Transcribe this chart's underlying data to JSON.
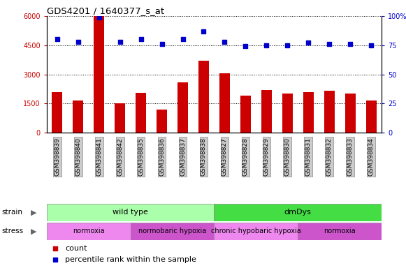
{
  "title": "GDS4201 / 1640377_s_at",
  "samples": [
    "GSM398839",
    "GSM398840",
    "GSM398841",
    "GSM398842",
    "GSM398835",
    "GSM398836",
    "GSM398837",
    "GSM398838",
    "GSM398827",
    "GSM398828",
    "GSM398829",
    "GSM398830",
    "GSM398831",
    "GSM398832",
    "GSM398833",
    "GSM398834"
  ],
  "counts": [
    2100,
    1650,
    6000,
    1500,
    2050,
    1200,
    2600,
    3700,
    3050,
    1900,
    2200,
    2000,
    2100,
    2150,
    2000,
    1650
  ],
  "percentiles": [
    80,
    78,
    99,
    78,
    80,
    76,
    80,
    87,
    78,
    74,
    75,
    75,
    77,
    76,
    76,
    75
  ],
  "bar_color": "#cc0000",
  "dot_color": "#0000cc",
  "ylim_left": [
    0,
    6000
  ],
  "ylim_right": [
    0,
    100
  ],
  "yticks_left": [
    0,
    1500,
    3000,
    4500,
    6000
  ],
  "yticks_right": [
    0,
    25,
    50,
    75,
    100
  ],
  "strain_groups": [
    {
      "label": "wild type",
      "start": 0,
      "end": 8,
      "color": "#aaffaa"
    },
    {
      "label": "dmDys",
      "start": 8,
      "end": 16,
      "color": "#44dd44"
    }
  ],
  "stress_colors_alt": [
    "#ee88ee",
    "#cc55cc"
  ],
  "stress_groups": [
    {
      "label": "normoxia",
      "start": 0,
      "end": 4,
      "color": "#ee88ee"
    },
    {
      "label": "normobaric hypoxia",
      "start": 4,
      "end": 8,
      "color": "#cc55cc"
    },
    {
      "label": "chronic hypobaric hypoxia",
      "start": 8,
      "end": 12,
      "color": "#ee88ee"
    },
    {
      "label": "normoxia",
      "start": 12,
      "end": 16,
      "color": "#cc55cc"
    }
  ],
  "legend_count_label": "count",
  "legend_pct_label": "percentile rank within the sample",
  "tick_bg_color": "#cccccc"
}
